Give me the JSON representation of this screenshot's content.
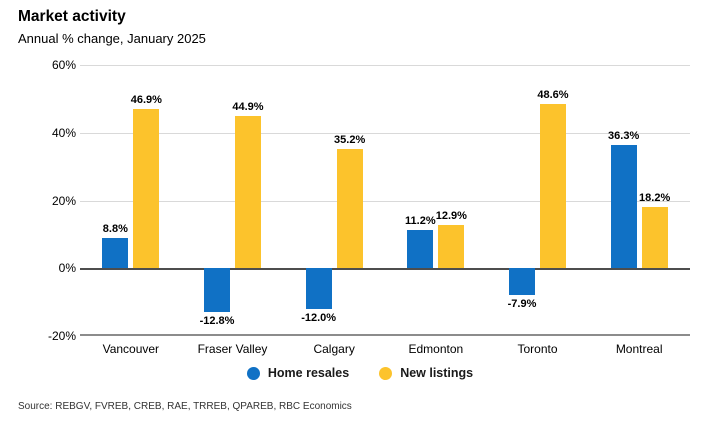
{
  "header": {
    "title": "Market activity",
    "subtitle": "Annual % change, January 2025"
  },
  "source": "Source: REBGV, FVREB, CREB, RAE, TRREB, QPAREB, RBC Economics",
  "colors": {
    "home_resales": "#1071C5",
    "new_listings": "#FCC32C",
    "gridline": "#D9D9D9",
    "zero_line": "#4D4D4D",
    "bottom_axis": "#8C8C8C"
  },
  "chart_data": {
    "type": "bar",
    "title": "Market activity",
    "subtitle": "Annual % change, January 2025",
    "categories": [
      "Vancouver",
      "Fraser Valley",
      "Calgary",
      "Edmonton",
      "Toronto",
      "Montreal"
    ],
    "series": [
      {
        "name": "Home resales",
        "color": "#1071C5",
        "values": [
          8.8,
          -12.8,
          -12.0,
          11.2,
          -7.9,
          36.3
        ]
      },
      {
        "name": "New listings",
        "color": "#FCC32C",
        "values": [
          46.9,
          44.9,
          35.2,
          12.9,
          48.6,
          18.2
        ]
      }
    ],
    "value_label_suffix": "%",
    "ylim": [
      -20,
      60
    ],
    "yticks": [
      60,
      40,
      20,
      0,
      -20
    ],
    "ytick_labels": [
      "60%",
      "40%",
      "20%",
      "0%",
      "-20%"
    ],
    "grid": true,
    "legend_position": "bottom"
  }
}
